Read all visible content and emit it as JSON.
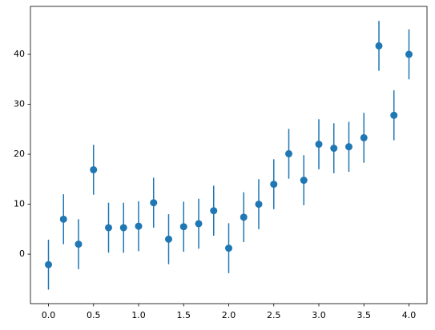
{
  "chart_data": {
    "type": "errorbar",
    "x": [
      0,
      0.1667,
      0.3333,
      0.5,
      0.6667,
      0.8333,
      1.0,
      1.1667,
      1.3333,
      1.5,
      1.6667,
      1.8333,
      2.0,
      2.1667,
      2.3333,
      2.5,
      2.6667,
      2.8333,
      3.0,
      3.1667,
      3.3333,
      3.5,
      3.6667,
      3.8333,
      4.0
    ],
    "series": [
      {
        "color": "#1f77b4",
        "values": [
          -2.1,
          7.0,
          2.0,
          16.9,
          5.3,
          5.3,
          5.6,
          10.3,
          3.0,
          5.5,
          6.1,
          8.7,
          1.2,
          7.4,
          10.0,
          14.0,
          20.1,
          14.8,
          22.0,
          21.2,
          21.5,
          23.3,
          41.7,
          27.8,
          40.0
        ],
        "yerr": [
          5,
          5,
          5,
          5,
          5,
          5,
          5,
          5,
          5,
          5,
          5,
          5,
          5,
          5,
          5,
          5,
          5,
          5,
          5,
          5,
          5,
          5,
          5,
          5,
          5
        ]
      }
    ],
    "xlim": [
      -0.2,
      4.2
    ],
    "ylim": [
      -9.9,
      49.6
    ],
    "xticks": [
      {
        "value": 0,
        "label": "0.0"
      },
      {
        "value": 0.5,
        "label": "0.5"
      },
      {
        "value": 1,
        "label": "1.0"
      },
      {
        "value": 1.5,
        "label": "1.5"
      },
      {
        "value": 2,
        "label": "2.0"
      },
      {
        "value": 2.5,
        "label": "2.5"
      },
      {
        "value": 3,
        "label": "3.0"
      },
      {
        "value": 3.5,
        "label": "3.5"
      },
      {
        "value": 4,
        "label": "4.0"
      }
    ],
    "yticks": [
      0,
      10,
      20,
      30,
      40
    ]
  }
}
